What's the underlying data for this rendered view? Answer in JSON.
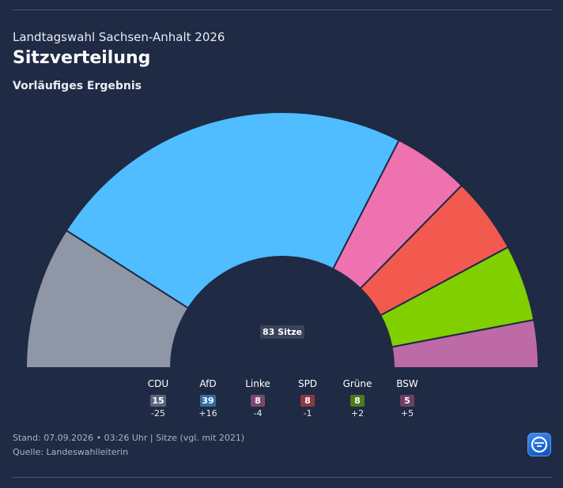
{
  "header": {
    "supertitle": "Landtagswahl Sachsen-Anhalt 2026",
    "title": "Sitzverteilung",
    "subtitle": "Vorläufiges Ergebnis"
  },
  "chart_data": {
    "type": "pie",
    "variant": "parliament-semicircle",
    "total_label": "83 Sitze",
    "total_seats": 83,
    "categories": [
      "CDU",
      "AfD",
      "Linke",
      "SPD",
      "Grüne",
      "BSW"
    ],
    "values": [
      15,
      39,
      8,
      8,
      8,
      5
    ],
    "diffs": [
      "-25",
      "+16",
      "-4",
      "-1",
      "+2",
      "+5"
    ],
    "colors": [
      "#8f97a6",
      "#4fbdff",
      "#ef72b0",
      "#f25a50",
      "#82cf00",
      "#bd6aa6"
    ],
    "legend_badge_colors": [
      "#5d6478",
      "#2f6fa0",
      "#7a4a6e",
      "#8b3a44",
      "#4d7a1c",
      "#6e3f64"
    ],
    "legend_position": "bottom"
  },
  "footer": {
    "line1": "Stand: 07.09.2026 • 03:26 Uhr | Sitze (vgl. mit 2021)",
    "line2": "Quelle: Landeswahlleiterin"
  },
  "logo": {
    "icon": "ard-logo-icon"
  }
}
